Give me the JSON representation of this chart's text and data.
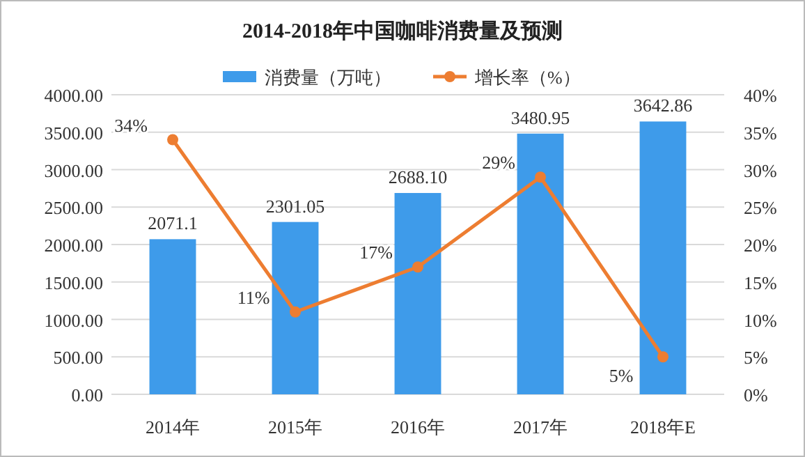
{
  "chart_data": {
    "type": "bar",
    "title": "2014-2018年中国咖啡消费量及预测",
    "categories": [
      "2014年",
      "2015年",
      "2016年",
      "2017年",
      "2018年E"
    ],
    "series": [
      {
        "name": "消费量（万吨）",
        "color": "#3e9bea",
        "values": [
          2071.1,
          2301.05,
          2688.1,
          3480.95,
          3642.86
        ],
        "value_labels": [
          "2071.1",
          "2301.05",
          "2688.10",
          "3480.95",
          "3642.86"
        ]
      },
      {
        "name": "增长率（%）",
        "type": "line",
        "axis": "y2",
        "color": "#ed7d31",
        "values": [
          34,
          11,
          17,
          29,
          5
        ],
        "value_labels": [
          "34%",
          "11%",
          "17%",
          "29%",
          "5%"
        ],
        "marker": "circle"
      }
    ],
    "ylim": [
      0,
      4000
    ],
    "yticks": [
      {
        "value": 0,
        "label": "0.00"
      },
      {
        "value": 500,
        "label": "500.00"
      },
      {
        "value": 1000,
        "label": "1000.00"
      },
      {
        "value": 1500,
        "label": "1500.00"
      },
      {
        "value": 2000,
        "label": "2000.00"
      },
      {
        "value": 2500,
        "label": "2500.00"
      },
      {
        "value": 3000,
        "label": "3000.00"
      },
      {
        "value": 3500,
        "label": "3500.00"
      },
      {
        "value": 4000,
        "label": "4000.00"
      }
    ],
    "y2lim": [
      0,
      40
    ],
    "y2ticks": [
      {
        "value": 0,
        "label": "0%"
      },
      {
        "value": 5,
        "label": "5%"
      },
      {
        "value": 10,
        "label": "10%"
      },
      {
        "value": 15,
        "label": "15%"
      },
      {
        "value": 20,
        "label": "20%"
      },
      {
        "value": 25,
        "label": "25%"
      },
      {
        "value": 30,
        "label": "30%"
      },
      {
        "value": 35,
        "label": "35%"
      },
      {
        "value": 40,
        "label": "40%"
      }
    ],
    "grid": "y",
    "legend": "top"
  }
}
